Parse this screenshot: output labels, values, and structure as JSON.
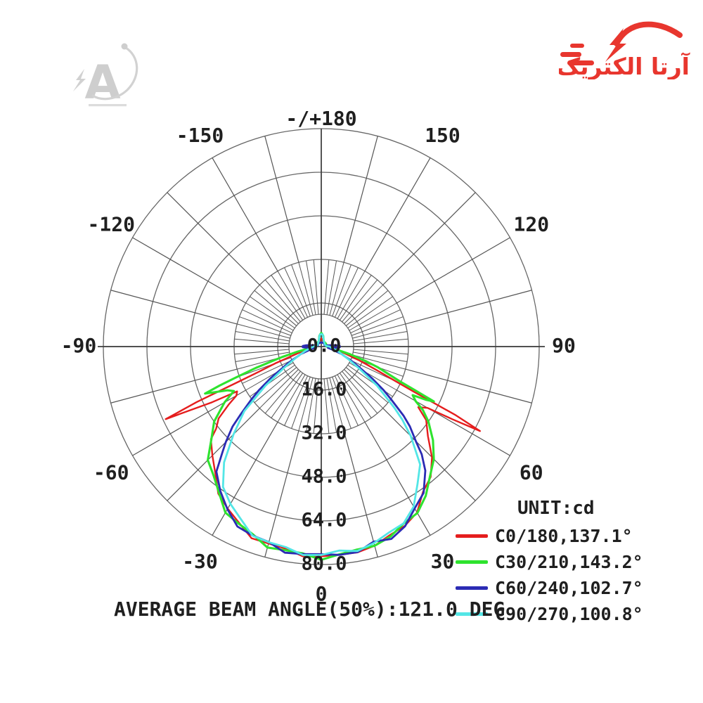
{
  "page": {
    "background": "#ffffff"
  },
  "logo": {
    "text": "آرتا الکتریک",
    "color": "#e8362e"
  },
  "watermark": {
    "letter": "A",
    "color": "#c6c6c6"
  },
  "chart_data": {
    "type": "line",
    "subtype": "polar-photometric-curve",
    "unit_label": "UNIT:cd",
    "caption": "AVERAGE BEAM ANGLE(50%):121.0 DEG",
    "angle_axis": {
      "min": -180,
      "max": 180,
      "label_step_deg": 30,
      "zero_at": "bottom"
    },
    "r_axis": {
      "max": 80,
      "rings": [
        16,
        32,
        48,
        64,
        80
      ],
      "ring_labels": [
        "16.0",
        "32.0",
        "48.0",
        "64.0",
        "80.0"
      ],
      "center_label": "0.0"
    },
    "grid": {
      "spoke_step_deg": 15,
      "fine_tick_step_deg": 5,
      "ring_color": "#666666",
      "spoke_color": "#555555",
      "axis_color": "#3d3d3d"
    },
    "angle_labels": [
      {
        "angle": -150,
        "label": "-150"
      },
      {
        "angle": -120,
        "label": "-120"
      },
      {
        "angle": -90,
        "label": "-90"
      },
      {
        "angle": -60,
        "label": "-60"
      },
      {
        "angle": -30,
        "label": "-30"
      },
      {
        "angle": 0,
        "label": "0"
      },
      {
        "angle": 30,
        "label": "30"
      },
      {
        "angle": 60,
        "label": "60"
      },
      {
        "angle": 90,
        "label": "90"
      },
      {
        "angle": 120,
        "label": "120"
      },
      {
        "angle": 150,
        "label": "150"
      },
      {
        "angle": 180,
        "label": "-/+180"
      }
    ],
    "series": [
      {
        "name": "C0/180",
        "legend": "C0/180,137.1°",
        "beam_angle_deg": 137.1,
        "color": "#e51d1d",
        "points": [
          [
            -180,
            3
          ],
          [
            -170,
            2.5
          ],
          [
            -160,
            2
          ],
          [
            -150,
            2
          ],
          [
            -140,
            2
          ],
          [
            -130,
            2
          ],
          [
            -120,
            2
          ],
          [
            -110,
            2
          ],
          [
            -100,
            2
          ],
          [
            -95,
            2
          ],
          [
            -90,
            2.2
          ],
          [
            -85,
            2.6
          ],
          [
            -80,
            4
          ],
          [
            -75,
            8
          ],
          [
            -72,
            12
          ],
          [
            -70,
            18
          ],
          [
            -68,
            25
          ],
          [
            -67,
            33
          ],
          [
            -66,
            50
          ],
          [
            -65,
            63
          ],
          [
            -63,
            45
          ],
          [
            -62,
            35
          ],
          [
            -60,
            36
          ],
          [
            -58,
            40
          ],
          [
            -55,
            46
          ],
          [
            -52,
            49
          ],
          [
            -50,
            52
          ],
          [
            -45,
            57
          ],
          [
            -40,
            61
          ],
          [
            -35,
            65
          ],
          [
            -30,
            69
          ],
          [
            -25,
            72
          ],
          [
            -20,
            74
          ],
          [
            -15,
            75
          ],
          [
            -10,
            76
          ],
          [
            -5,
            76.5
          ],
          [
            0,
            77
          ],
          [
            5,
            77.5
          ],
          [
            10,
            76
          ],
          [
            15,
            75.5
          ],
          [
            20,
            74.5
          ],
          [
            25,
            72
          ],
          [
            30,
            70
          ],
          [
            35,
            66
          ],
          [
            40,
            62
          ],
          [
            45,
            57
          ],
          [
            50,
            52
          ],
          [
            55,
            47
          ],
          [
            58,
            42
          ],
          [
            60,
            45
          ],
          [
            61,
            55
          ],
          [
            62,
            66
          ],
          [
            63,
            55
          ],
          [
            64,
            38
          ],
          [
            65,
            30
          ],
          [
            67,
            22
          ],
          [
            70,
            15
          ],
          [
            75,
            8
          ],
          [
            80,
            4
          ],
          [
            85,
            2.5
          ],
          [
            90,
            2
          ],
          [
            100,
            2
          ],
          [
            110,
            2
          ],
          [
            120,
            2
          ],
          [
            130,
            2
          ],
          [
            140,
            2
          ],
          [
            150,
            2
          ],
          [
            160,
            2
          ],
          [
            170,
            2.5
          ],
          [
            180,
            3
          ]
        ]
      },
      {
        "name": "C30/210",
        "legend": "C30/210,143.2°",
        "beam_angle_deg": 143.2,
        "color": "#2ee32e",
        "points": [
          [
            -180,
            5
          ],
          [
            -175,
            4.5
          ],
          [
            -170,
            4
          ],
          [
            -160,
            2.5
          ],
          [
            -150,
            2
          ],
          [
            -140,
            2
          ],
          [
            -130,
            2
          ],
          [
            -120,
            2
          ],
          [
            -110,
            2
          ],
          [
            -100,
            2
          ],
          [
            -90,
            2
          ],
          [
            -85,
            3
          ],
          [
            -80,
            6
          ],
          [
            -78,
            9
          ],
          [
            -75,
            15
          ],
          [
            -72,
            25
          ],
          [
            -70,
            34
          ],
          [
            -69,
            40
          ],
          [
            -68,
            46
          ],
          [
            -67,
            43
          ],
          [
            -65,
            38
          ],
          [
            -63,
            36
          ],
          [
            -60,
            41
          ],
          [
            -55,
            48
          ],
          [
            -50,
            53
          ],
          [
            -45,
            58
          ],
          [
            -40,
            62
          ],
          [
            -35,
            66
          ],
          [
            -30,
            69.5
          ],
          [
            -25,
            72
          ],
          [
            -20,
            74
          ],
          [
            -15,
            75.5
          ],
          [
            -10,
            76
          ],
          [
            -5,
            77
          ],
          [
            0,
            77.5
          ],
          [
            5,
            76.5
          ],
          [
            10,
            76.5
          ],
          [
            15,
            75
          ],
          [
            20,
            74
          ],
          [
            25,
            72.5
          ],
          [
            30,
            70
          ],
          [
            35,
            66.5
          ],
          [
            40,
            63
          ],
          [
            45,
            58
          ],
          [
            50,
            53
          ],
          [
            55,
            48
          ],
          [
            58,
            44
          ],
          [
            60,
            40
          ],
          [
            62,
            38
          ],
          [
            63,
            43
          ],
          [
            64,
            46
          ],
          [
            65,
            38
          ],
          [
            66,
            32
          ],
          [
            68,
            26
          ],
          [
            70,
            22
          ],
          [
            72,
            17
          ],
          [
            75,
            11
          ],
          [
            80,
            5
          ],
          [
            85,
            3
          ],
          [
            90,
            2
          ],
          [
            100,
            2
          ],
          [
            110,
            2
          ],
          [
            120,
            2
          ],
          [
            130,
            2
          ],
          [
            140,
            2
          ],
          [
            150,
            2
          ],
          [
            160,
            2.5
          ],
          [
            170,
            4
          ],
          [
            175,
            4.5
          ],
          [
            180,
            5
          ]
        ]
      },
      {
        "name": "C60/240",
        "legend": "C60/240,102.7°",
        "beam_angle_deg": 102.7,
        "color": "#2b2bb4",
        "points": [
          [
            -180,
            1.5
          ],
          [
            -160,
            1.5
          ],
          [
            -140,
            1.5
          ],
          [
            -120,
            1.4
          ],
          [
            -110,
            1.3
          ],
          [
            -102,
            2
          ],
          [
            -98,
            3.5
          ],
          [
            -95,
            5.5
          ],
          [
            -92,
            6.8
          ],
          [
            -88,
            6.8
          ],
          [
            -85,
            5
          ],
          [
            -82,
            3
          ],
          [
            -80,
            2.5
          ],
          [
            -75,
            4
          ],
          [
            -70,
            8
          ],
          [
            -68,
            9
          ],
          [
            -65,
            12
          ],
          [
            -63,
            14
          ],
          [
            -60,
            18
          ],
          [
            -58,
            22
          ],
          [
            -55,
            28
          ],
          [
            -53,
            32
          ],
          [
            -50,
            39
          ],
          [
            -48,
            43
          ],
          [
            -45,
            50
          ],
          [
            -43,
            54
          ],
          [
            -40,
            59
          ],
          [
            -35,
            65
          ],
          [
            -30,
            69.5
          ],
          [
            -25,
            72
          ],
          [
            -20,
            74
          ],
          [
            -15,
            75
          ],
          [
            -10,
            76
          ],
          [
            -5,
            76.5
          ],
          [
            0,
            77
          ],
          [
            5,
            76
          ],
          [
            10,
            76.5
          ],
          [
            15,
            75
          ],
          [
            20,
            74.5
          ],
          [
            25,
            72.5
          ],
          [
            30,
            69.5
          ],
          [
            35,
            65
          ],
          [
            40,
            59
          ],
          [
            43,
            54
          ],
          [
            45,
            50
          ],
          [
            48,
            43
          ],
          [
            50,
            39
          ],
          [
            53,
            32
          ],
          [
            55,
            28
          ],
          [
            58,
            22
          ],
          [
            60,
            18
          ],
          [
            63,
            14
          ],
          [
            65,
            12
          ],
          [
            68,
            9
          ],
          [
            70,
            8
          ],
          [
            75,
            4
          ],
          [
            80,
            2.5
          ],
          [
            82,
            3
          ],
          [
            85,
            5
          ],
          [
            88,
            6.8
          ],
          [
            92,
            6.8
          ],
          [
            95,
            5.5
          ],
          [
            98,
            3.5
          ],
          [
            102,
            2
          ],
          [
            110,
            1.3
          ],
          [
            120,
            1.4
          ],
          [
            140,
            1.5
          ],
          [
            160,
            1.5
          ],
          [
            180,
            1.5
          ]
        ]
      },
      {
        "name": "C90/270",
        "legend": "C90/270,100.8°",
        "beam_angle_deg": 100.8,
        "color": "#53e6e6",
        "points": [
          [
            -180,
            4.6
          ],
          [
            -173,
            4.4
          ],
          [
            -168,
            3.5
          ],
          [
            -160,
            2.5
          ],
          [
            -150,
            2
          ],
          [
            -140,
            1.8
          ],
          [
            -130,
            1.6
          ],
          [
            -120,
            1.5
          ],
          [
            -110,
            1.5
          ],
          [
            -100,
            1.8
          ],
          [
            -95,
            2.2
          ],
          [
            -90,
            3
          ],
          [
            -85,
            3.5
          ],
          [
            -80,
            4.5
          ],
          [
            -75,
            6
          ],
          [
            -70,
            8
          ],
          [
            -65,
            11
          ],
          [
            -60,
            16
          ],
          [
            -55,
            25
          ],
          [
            -50,
            36
          ],
          [
            -48,
            40
          ],
          [
            -45,
            46
          ],
          [
            -40,
            56
          ],
          [
            -35,
            62
          ],
          [
            -30,
            67
          ],
          [
            -25,
            70.5
          ],
          [
            -20,
            73
          ],
          [
            -15,
            74.5
          ],
          [
            -10,
            75.5
          ],
          [
            -5,
            76
          ],
          [
            0,
            76.5
          ],
          [
            5,
            76
          ],
          [
            10,
            75.5
          ],
          [
            15,
            74.5
          ],
          [
            20,
            73.5
          ],
          [
            25,
            71
          ],
          [
            30,
            67.5
          ],
          [
            35,
            62.5
          ],
          [
            40,
            56
          ],
          [
            45,
            46
          ],
          [
            48,
            40
          ],
          [
            50,
            36
          ],
          [
            55,
            25
          ],
          [
            60,
            16
          ],
          [
            65,
            11
          ],
          [
            70,
            8
          ],
          [
            75,
            6
          ],
          [
            80,
            4.5
          ],
          [
            85,
            3.5
          ],
          [
            90,
            3
          ],
          [
            95,
            2.2
          ],
          [
            100,
            1.8
          ],
          [
            110,
            1.5
          ],
          [
            120,
            1.5
          ],
          [
            130,
            1.6
          ],
          [
            140,
            1.8
          ],
          [
            150,
            2
          ],
          [
            160,
            2.5
          ],
          [
            168,
            3.5
          ],
          [
            173,
            4.4
          ],
          [
            180,
            4.6
          ]
        ]
      }
    ]
  }
}
